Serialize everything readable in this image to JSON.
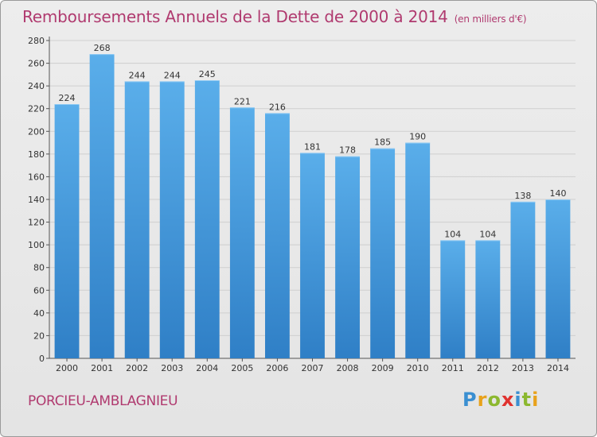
{
  "title": "Remboursements Annuels de la Dette de 2000 à 2014",
  "unit_note": "(en milliers d'€)",
  "commune": "PORCIEU-AMBLAGNIEU",
  "logo": {
    "text": "Proxiti",
    "letter_colors": [
      "#3a8fd1",
      "#e8a21b",
      "#8cb82f",
      "#e0322f",
      "#3a8fd1",
      "#8cb82f",
      "#e8a21b"
    ]
  },
  "colors": {
    "bar_top": "#5aaeea",
    "bar_bottom": "#2f7fc6",
    "title": "#b03a6f",
    "grid": "#cfcfcf"
  },
  "chart_data": {
    "type": "bar",
    "title": "Remboursements Annuels de la Dette de 2000 à 2014",
    "xlabel": "",
    "ylabel": "",
    "categories": [
      "2000",
      "2001",
      "2002",
      "2003",
      "2004",
      "2005",
      "2006",
      "2007",
      "2008",
      "2009",
      "2010",
      "2011",
      "2012",
      "2013",
      "2014"
    ],
    "values": [
      224,
      268,
      244,
      244,
      245,
      221,
      216,
      181,
      178,
      185,
      190,
      104,
      104,
      138,
      140
    ],
    "ylim": [
      0,
      280
    ],
    "yticks": [
      0,
      20,
      40,
      60,
      80,
      100,
      120,
      140,
      160,
      180,
      200,
      220,
      240,
      260,
      280
    ],
    "grid": true
  }
}
